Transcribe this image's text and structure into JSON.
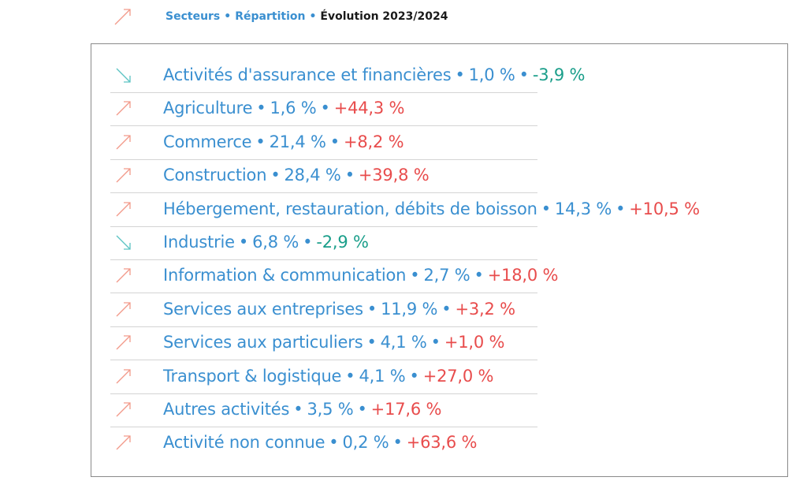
{
  "header": {
    "trend": "up",
    "breadcrumbs": [
      "Secteurs",
      "Répartition"
    ],
    "separator": "•",
    "current": "Évolution 2023/2024"
  },
  "colors": {
    "label": "#3a8fd0",
    "increase": "#e84c4c",
    "decrease": "#1a9e8a"
  },
  "rows": [
    {
      "trend": "down",
      "label": "Activités d'assurance et financières",
      "share": "1,0 %",
      "change": "-3,9 %"
    },
    {
      "trend": "up",
      "label": "Agriculture",
      "share": "1,6 %",
      "change": "+44,3 %"
    },
    {
      "trend": "up",
      "label": "Commerce",
      "share": "21,4 %",
      "change": "+8,2 %"
    },
    {
      "trend": "up",
      "label": "Construction",
      "share": "28,4 %",
      "change": "+39,8 %"
    },
    {
      "trend": "up",
      "label": "Hébergement, restauration, débits de boisson",
      "share": "14,3 %",
      "change": "+10,5 %"
    },
    {
      "trend": "down",
      "label": "Industrie",
      "share": "6,8 %",
      "change": "-2,9 %"
    },
    {
      "trend": "up",
      "label": "Information & communication",
      "share": "2,7 %",
      "change": "+18,0 %"
    },
    {
      "trend": "up",
      "label": "Services aux entreprises",
      "share": "11,9 %",
      "change": "+3,2 %"
    },
    {
      "trend": "up",
      "label": "Services aux particuliers",
      "share": "4,1 %",
      "change": "+1,0 %"
    },
    {
      "trend": "up",
      "label": "Transport & logistique",
      "share": "4,1 %",
      "change": "+27,0 %"
    },
    {
      "trend": "up",
      "label": "Autres activités",
      "share": "3,5 %",
      "change": "+17,6 %"
    },
    {
      "trend": "up",
      "label": "Activité non connue",
      "share": "0,2 %",
      "change": "+63,6 %"
    }
  ]
}
